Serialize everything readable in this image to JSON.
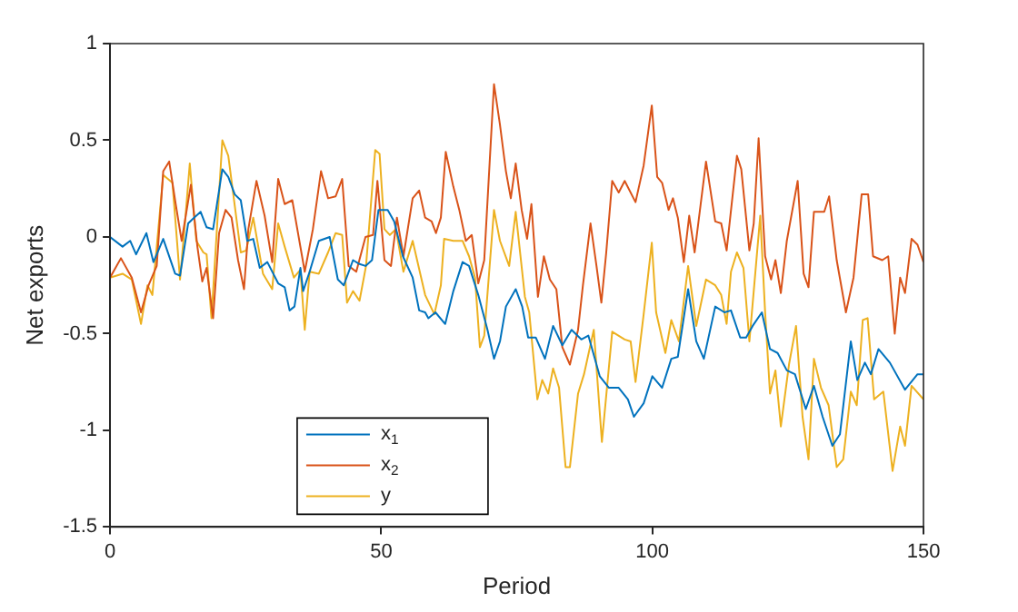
{
  "chart_data": {
    "type": "line",
    "xlabel": "Period",
    "ylabel": "Net exports",
    "xlim": [
      0,
      150
    ],
    "xticks": [
      0,
      50,
      100,
      150
    ],
    "ylim": [
      -1.5,
      1
    ],
    "yticks": [
      -1.5,
      -1,
      -0.5,
      0,
      0.5,
      1
    ],
    "grid": false,
    "legend": "bottom left",
    "marker": "none",
    "line_style": "solid",
    "series": [
      {
        "name": "x$_{1}$",
        "color": "#0072bd",
        "x": [
          0,
          2.3,
          3.7,
          4.8,
          6.7,
          8,
          9.8,
          12,
          12.9,
          14.4,
          15.5,
          16.7,
          17.8,
          19,
          20.7,
          21.8,
          23,
          24.1,
          25.3,
          26.4,
          27.6,
          29,
          31,
          32.2,
          33.1,
          34,
          35.1,
          35.6,
          36.8,
          38.5,
          40.5,
          42,
          43.1,
          44.8,
          46,
          47.1,
          48.3,
          49.5,
          51.2,
          52.4,
          54,
          55.8,
          57,
          58.1,
          58.7,
          60,
          61.8,
          63.3,
          65,
          66.2,
          67.9,
          69.6,
          70.8,
          71.9,
          73,
          74.8,
          76,
          77.1,
          78.5,
          80.2,
          81.7,
          83.4,
          85.1,
          86.9,
          88.2,
          90.3,
          92,
          93.8,
          95.5,
          96.6,
          98.4,
          100,
          101.8,
          103.5,
          104.7,
          106.6,
          108.1,
          109.5,
          111.6,
          113.3,
          114.5,
          116.2,
          117.3,
          118.5,
          120.2,
          121.7,
          123.1,
          124.8,
          126.3,
          128.3,
          129.8,
          131.4,
          133.2,
          134.6,
          136.6,
          137.8,
          139.2,
          140.3,
          141.7,
          143.8,
          146.6,
          148.9,
          150
        ],
        "values": [
          0,
          -0.05,
          -0.02,
          -0.09,
          0.02,
          -0.13,
          -0.01,
          -0.19,
          -0.2,
          0.07,
          0.1,
          0.13,
          0.05,
          0.04,
          0.35,
          0.31,
          0.22,
          0.19,
          -0.02,
          -0.01,
          -0.16,
          -0.13,
          -0.24,
          -0.26,
          -0.38,
          -0.36,
          -0.16,
          -0.28,
          -0.18,
          -0.02,
          0,
          -0.22,
          -0.25,
          -0.12,
          -0.14,
          -0.15,
          -0.12,
          0.14,
          0.14,
          0.08,
          -0.1,
          -0.21,
          -0.38,
          -0.39,
          -0.42,
          -0.39,
          -0.45,
          -0.28,
          -0.13,
          -0.15,
          -0.3,
          -0.48,
          -0.63,
          -0.54,
          -0.36,
          -0.27,
          -0.36,
          -0.52,
          -0.52,
          -0.63,
          -0.46,
          -0.56,
          -0.48,
          -0.53,
          -0.51,
          -0.72,
          -0.78,
          -0.78,
          -0.84,
          -0.93,
          -0.86,
          -0.72,
          -0.78,
          -0.63,
          -0.62,
          -0.27,
          -0.54,
          -0.63,
          -0.36,
          -0.39,
          -0.38,
          -0.52,
          -0.52,
          -0.46,
          -0.39,
          -0.58,
          -0.6,
          -0.69,
          -0.71,
          -0.89,
          -0.77,
          -0.93,
          -1.08,
          -1.02,
          -0.54,
          -0.74,
          -0.65,
          -0.71,
          -0.58,
          -0.65,
          -0.79,
          -0.71,
          -0.71
        ]
      },
      {
        "name": "x$_{2}$",
        "color": "#d95319",
        "x": [
          0,
          2,
          4,
          5.7,
          7.1,
          8.6,
          9.8,
          10.9,
          12.1,
          13.2,
          14.9,
          16.1,
          17,
          17.8,
          19,
          20.1,
          21.3,
          22.4,
          23.6,
          24.7,
          25.5,
          27,
          28.5,
          29.9,
          31,
          32.2,
          33.6,
          35.9,
          37.4,
          38.9,
          40.2,
          41.6,
          42.8,
          44,
          45.4,
          47.1,
          48.5,
          49.3,
          50.6,
          51.8,
          52.9,
          54.1,
          55.8,
          57,
          58.1,
          59.3,
          60.1,
          61,
          61.9,
          63.3,
          64.4,
          65.6,
          66.7,
          67.9,
          69,
          70.8,
          71.9,
          73,
          73.9,
          74.8,
          75.9,
          76.9,
          77.7,
          78.9,
          80,
          81.1,
          82.3,
          83.4,
          84.8,
          86.3,
          87.2,
          88.6,
          89.7,
          90.6,
          91.5,
          92.6,
          93.8,
          94.9,
          96.9,
          98.4,
          99.9,
          100.9,
          101.8,
          103,
          103.8,
          104.7,
          105.8,
          106.8,
          107.8,
          109.9,
          111.6,
          112.7,
          113.7,
          115.6,
          116.4,
          117.9,
          118.7,
          119.6,
          120.8,
          121.9,
          122.7,
          123.7,
          124.8,
          126.8,
          127.9,
          128.8,
          129.8,
          131.7,
          132.6,
          134,
          135.7,
          137.1,
          138.6,
          139.8,
          140.7,
          142.4,
          143.5,
          144.7,
          145.7,
          146.6,
          147.8,
          148.9,
          150
        ],
        "values": [
          -0.21,
          -0.11,
          -0.21,
          -0.39,
          -0.25,
          -0.15,
          0.34,
          0.39,
          0.17,
          -0.02,
          0.27,
          -0.05,
          -0.23,
          -0.16,
          -0.42,
          0.02,
          0.14,
          0.1,
          -0.12,
          -0.27,
          0.04,
          0.29,
          0.11,
          -0.13,
          0.3,
          0.17,
          0.19,
          -0.18,
          0.04,
          0.34,
          0.2,
          0.21,
          0.3,
          -0.15,
          -0.18,
          0,
          0.01,
          0.29,
          -0.12,
          -0.15,
          0.1,
          -0.1,
          0.2,
          0.24,
          0.1,
          0.08,
          0.02,
          0.1,
          0.44,
          0.26,
          0.14,
          -0.02,
          0.01,
          -0.24,
          -0.12,
          0.79,
          0.58,
          0.34,
          0.2,
          0.38,
          0.14,
          -0.01,
          0.17,
          -0.31,
          -0.1,
          -0.22,
          -0.27,
          -0.57,
          -0.66,
          -0.48,
          -0.25,
          0.07,
          -0.15,
          -0.34,
          -0.08,
          0.29,
          0.23,
          0.29,
          0.18,
          0.37,
          0.68,
          0.31,
          0.28,
          0.14,
          0.2,
          0.1,
          -0.13,
          0.11,
          -0.08,
          0.39,
          0.08,
          0.07,
          -0.07,
          0.42,
          0.35,
          -0.07,
          0.07,
          0.51,
          -0.1,
          -0.22,
          -0.12,
          -0.29,
          -0.02,
          0.29,
          -0.19,
          -0.26,
          0.13,
          0.13,
          0.21,
          -0.12,
          -0.39,
          -0.21,
          0.22,
          0.22,
          -0.1,
          -0.12,
          -0.1,
          -0.5,
          -0.21,
          -0.29,
          -0.01,
          -0.04,
          -0.13
        ]
      },
      {
        "name": "y",
        "color": "#edb120",
        "x": [
          0,
          2.3,
          4,
          5.7,
          6.9,
          7.8,
          9.8,
          11.5,
          12.9,
          13.8,
          14.7,
          15.9,
          17.2,
          17.8,
          18.7,
          20.7,
          21.8,
          23,
          24.1,
          25.1,
          26.4,
          28.2,
          29.9,
          31,
          32.2,
          33.9,
          35.1,
          35.9,
          36.8,
          38.5,
          40.2,
          41.6,
          42.8,
          43.7,
          44.8,
          46,
          47.2,
          48.9,
          49.7,
          50.6,
          51.6,
          52.7,
          54.1,
          55.8,
          58.1,
          59.8,
          61,
          61.6,
          63.3,
          65,
          66.2,
          67.3,
          68.2,
          69,
          70.8,
          71.9,
          73.6,
          74.8,
          76.5,
          77.3,
          78.8,
          79.7,
          80.8,
          81.7,
          82.8,
          84,
          84.8,
          86.3,
          87.4,
          89.2,
          90.7,
          92.6,
          94.9,
          96,
          96.9,
          98.4,
          99.9,
          100.7,
          102.4,
          103.5,
          104.9,
          106.6,
          108.1,
          109.9,
          111.6,
          112.7,
          113.7,
          114.5,
          115.6,
          116.8,
          117.9,
          119.9,
          120.8,
          121.7,
          122.7,
          123.7,
          125.2,
          126.5,
          127.7,
          128.8,
          129.8,
          131.1,
          132.5,
          134,
          135.2,
          136.6,
          137.7,
          138.8,
          139.7,
          140.9,
          142.6,
          144.3,
          145.7,
          146.6,
          147.8,
          150
        ],
        "values": [
          -0.21,
          -0.19,
          -0.22,
          -0.45,
          -0.25,
          -0.3,
          0.32,
          0.28,
          -0.22,
          0.07,
          0.38,
          -0.02,
          -0.08,
          -0.09,
          -0.42,
          0.5,
          0.42,
          0.16,
          -0.08,
          -0.07,
          0.1,
          -0.19,
          -0.27,
          0.07,
          -0.05,
          -0.21,
          -0.17,
          -0.48,
          -0.18,
          -0.19,
          -0.08,
          0.02,
          0.01,
          -0.34,
          -0.28,
          -0.33,
          -0.15,
          0.45,
          0.43,
          0.04,
          0.01,
          0.04,
          -0.18,
          -0.02,
          -0.3,
          -0.4,
          -0.25,
          -0.01,
          -0.02,
          -0.02,
          -0.1,
          -0.21,
          -0.57,
          -0.51,
          0.14,
          -0.02,
          -0.15,
          0.13,
          -0.31,
          -0.39,
          -0.84,
          -0.74,
          -0.81,
          -0.68,
          -0.78,
          -1.19,
          -1.19,
          -0.81,
          -0.71,
          -0.48,
          -1.06,
          -0.49,
          -0.53,
          -0.54,
          -0.75,
          -0.4,
          -0.03,
          -0.39,
          -0.6,
          -0.43,
          -0.54,
          -0.15,
          -0.46,
          -0.22,
          -0.25,
          -0.3,
          -0.45,
          -0.18,
          -0.08,
          -0.16,
          -0.54,
          0.11,
          -0.39,
          -0.81,
          -0.69,
          -0.98,
          -0.66,
          -0.46,
          -0.93,
          -1.15,
          -0.63,
          -0.78,
          -0.87,
          -1.19,
          -1.15,
          -0.8,
          -0.87,
          -0.43,
          -0.42,
          -0.84,
          -0.8,
          -1.21,
          -0.98,
          -1.08,
          -0.77,
          -0.84
        ]
      }
    ]
  }
}
